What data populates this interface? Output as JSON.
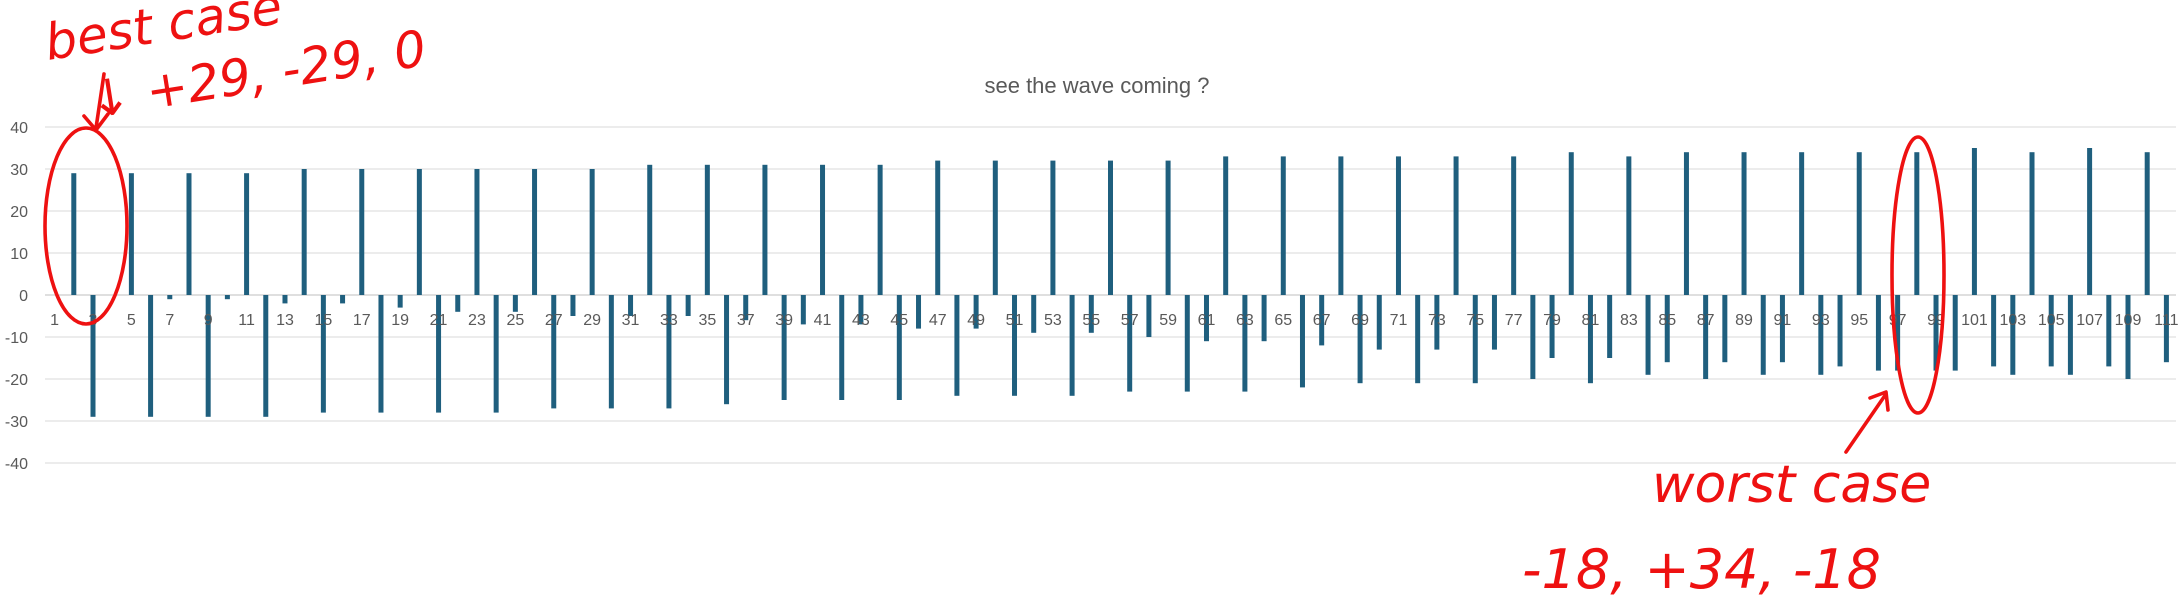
{
  "chart_data": {
    "type": "bar",
    "title": "see the wave coming ?",
    "xlabel": "",
    "ylabel": "",
    "ylim": [
      -40,
      40
    ],
    "yticks": [
      40,
      30,
      20,
      10,
      0,
      -10,
      -20,
      -30,
      -40
    ],
    "grid": true,
    "legend": "none",
    "bar_color": "#1f5f7e",
    "categories": [
      1,
      2,
      3,
      4,
      5,
      6,
      7,
      8,
      9,
      10,
      11,
      12,
      13,
      14,
      15,
      16,
      17,
      18,
      19,
      20,
      21,
      22,
      23,
      24,
      25,
      26,
      27,
      28,
      29,
      30,
      31,
      32,
      33,
      34,
      35,
      36,
      37,
      38,
      39,
      40,
      41,
      42,
      43,
      44,
      45,
      46,
      47,
      48,
      49,
      50,
      51,
      52,
      53,
      54,
      55,
      56,
      57,
      58,
      59,
      60,
      61,
      62,
      63,
      64,
      65,
      66,
      67,
      68,
      69,
      70,
      71,
      72,
      73,
      74,
      75,
      76,
      77,
      78,
      79,
      80,
      81,
      82,
      83,
      84,
      85,
      86,
      87,
      88,
      89,
      90,
      91,
      92,
      93,
      94,
      95,
      96,
      97,
      98,
      99,
      100,
      101,
      102,
      103,
      104,
      105,
      106,
      107,
      108,
      109,
      110,
      111
    ],
    "tick_labels": [
      "1",
      "3",
      "5",
      "7",
      "9",
      "11",
      "13",
      "15",
      "17",
      "19",
      "21",
      "23",
      "25",
      "27",
      "29",
      "31",
      "33",
      "35",
      "37",
      "39",
      "41",
      "43",
      "45",
      "47",
      "49",
      "51",
      "53",
      "55",
      "57",
      "59",
      "61",
      "63",
      "65",
      "67",
      "69",
      "71",
      "73",
      "75",
      "77",
      "79",
      "81",
      "83",
      "85",
      "87",
      "89",
      "91",
      "93",
      "95",
      "97",
      "99",
      "101",
      "103",
      "105",
      "107",
      "109",
      "111"
    ],
    "values": [
      0,
      29,
      -29,
      0,
      29,
      -29,
      -1,
      29,
      -29,
      -1,
      29,
      -29,
      -2,
      30,
      -28,
      -2,
      30,
      -28,
      -3,
      30,
      -28,
      -4,
      30,
      -28,
      -4,
      30,
      -27,
      -5,
      30,
      -27,
      -5,
      31,
      -27,
      -5,
      31,
      -26,
      -6,
      31,
      -25,
      -7,
      31,
      -25,
      -7,
      31,
      -25,
      -8,
      32,
      -24,
      -8,
      32,
      -24,
      -9,
      32,
      -24,
      -9,
      32,
      -23,
      -10,
      32,
      -23,
      -11,
      33,
      -23,
      -11,
      33,
      -22,
      -12,
      33,
      -21,
      -13,
      33,
      -21,
      -13,
      33,
      -21,
      -13,
      33,
      -20,
      -15,
      34,
      -21,
      -15,
      33,
      -19,
      -16,
      34,
      -20,
      -16,
      34,
      -19,
      -16,
      34,
      -19,
      -17,
      34,
      -18,
      -18,
      34,
      -18,
      -18,
      35,
      -17,
      -19,
      34,
      -17,
      -19,
      35,
      -17,
      -20,
      34,
      -16
    ]
  },
  "annotations": {
    "best_case_label": "best case",
    "best_case_values": "↓ +29, -29, 0",
    "worst_case_label": "worst case",
    "worst_case_values": "-18, +34, -18",
    "ink_color": "#ee1111"
  }
}
